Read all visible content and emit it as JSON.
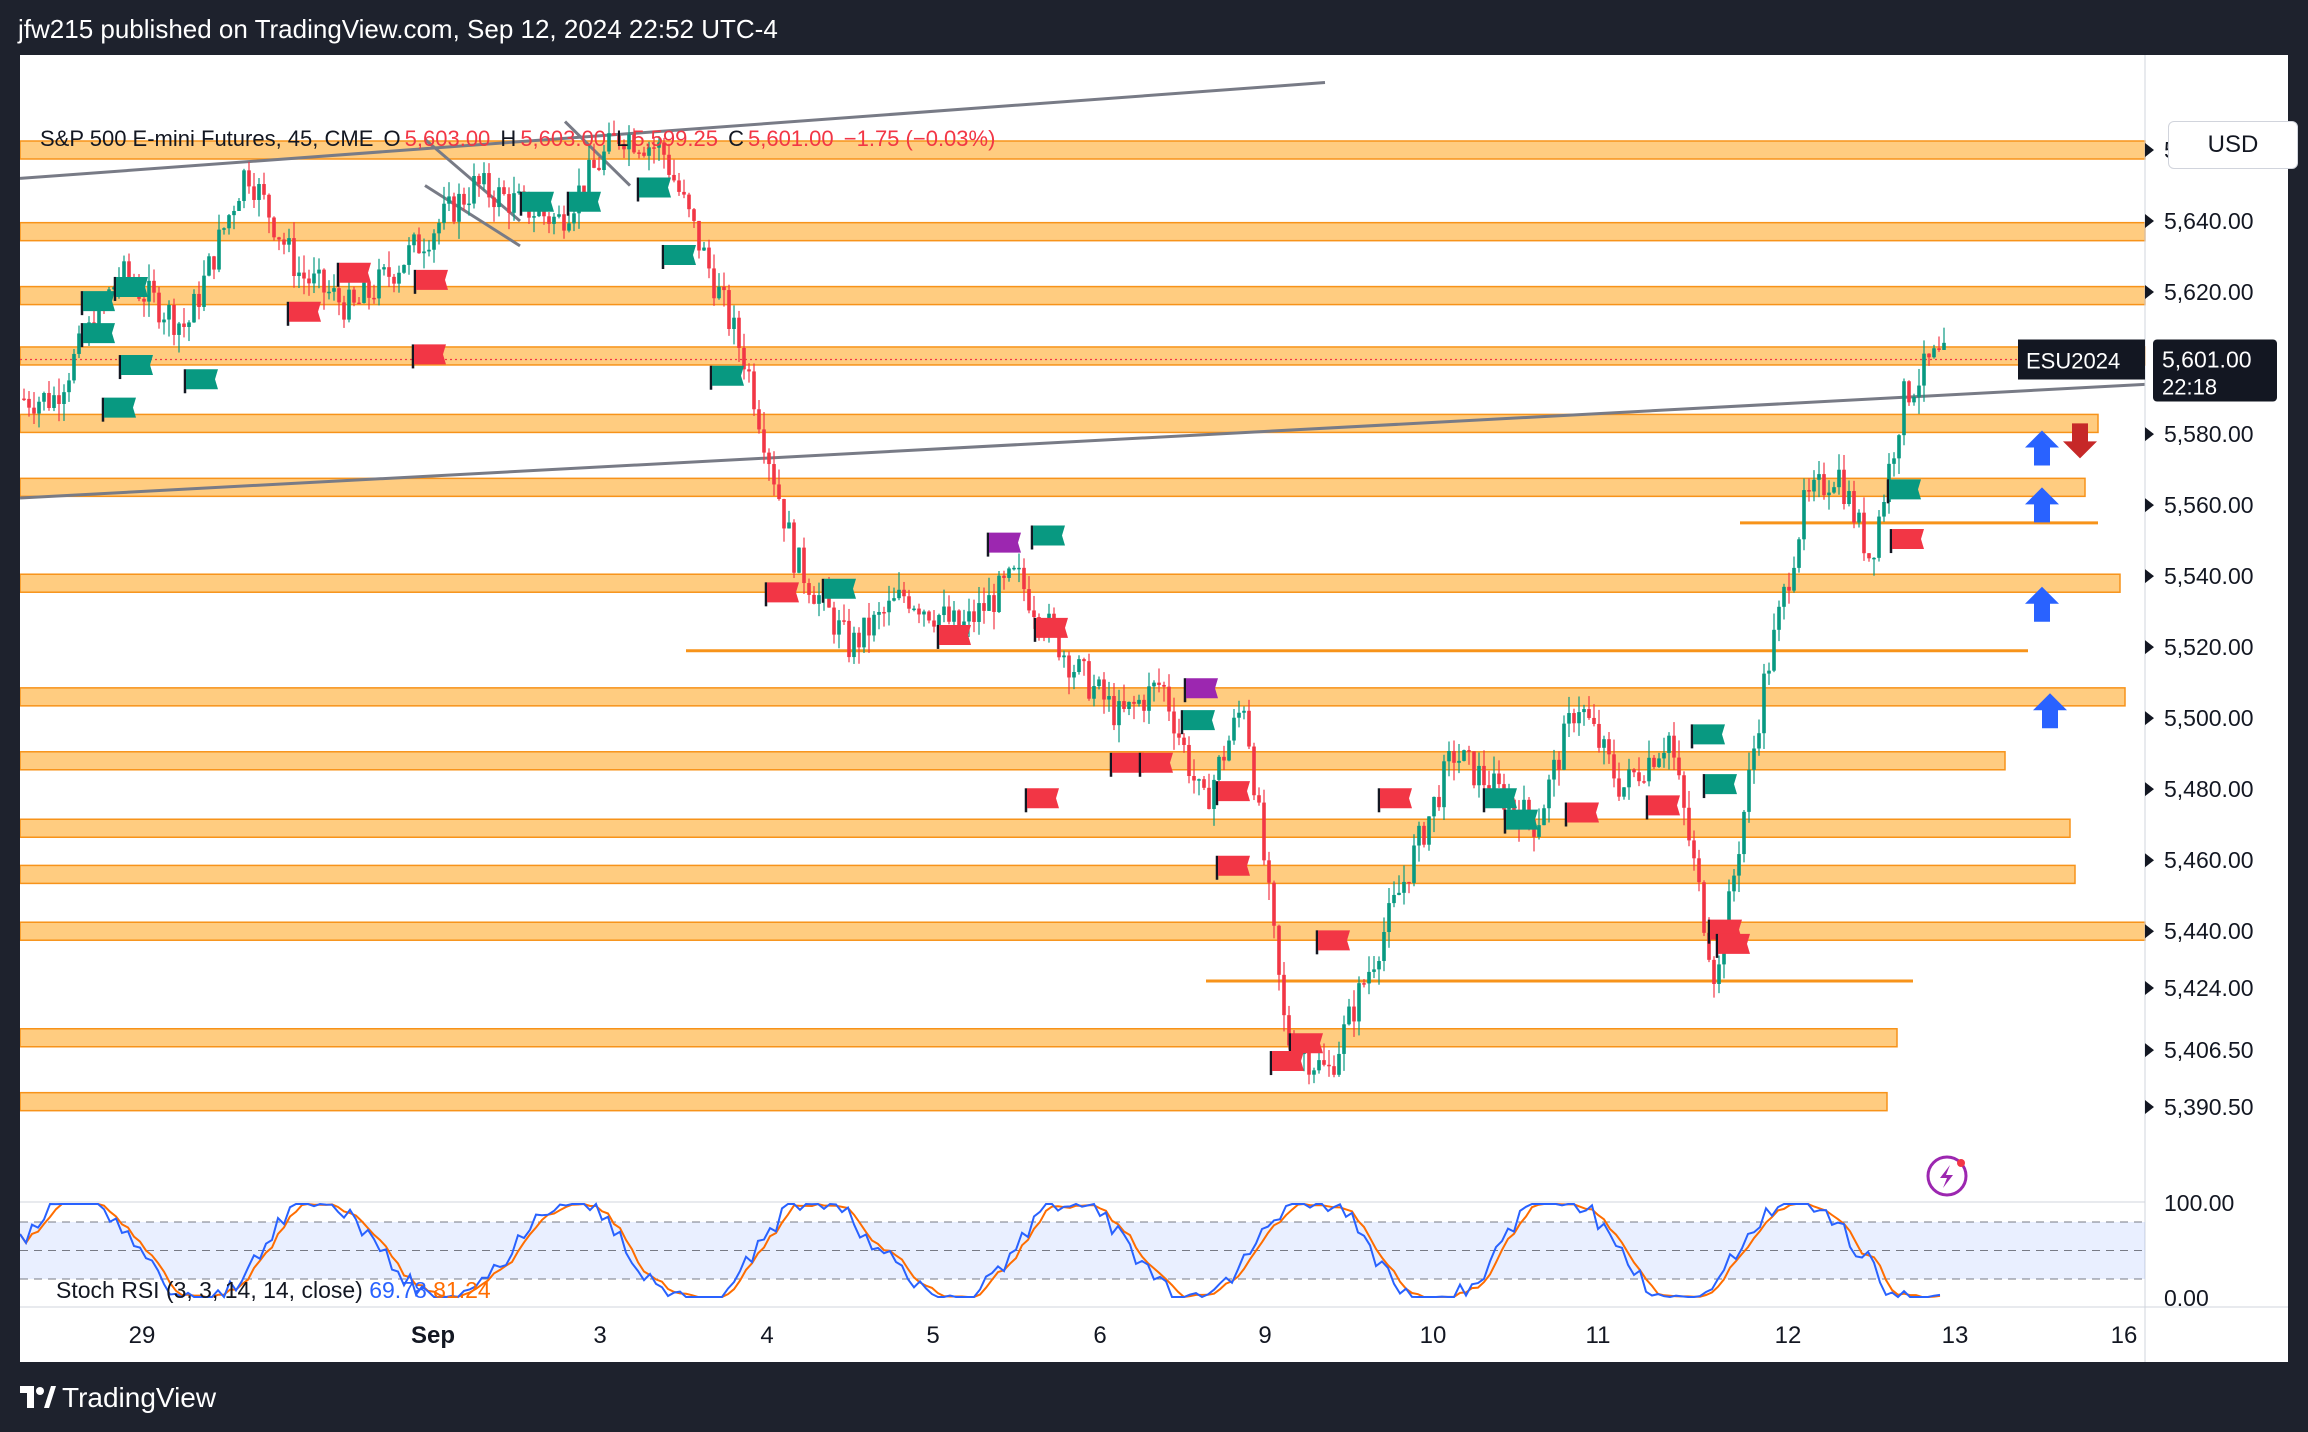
{
  "header": {
    "published": "jfw215 published on TradingView.com, Sep 12, 2024 22:52 UTC-4"
  },
  "legend": {
    "symbol": "S&P 500 E-mini Futures, 45, CME",
    "o_label": "O",
    "o": "5,603.00",
    "h_label": "H",
    "h": "5,603.00",
    "l_label": "L",
    "l": "5,599.25",
    "c_label": "C",
    "c": "5,601.00",
    "change": "−1.75 (−0.03%)"
  },
  "currency": "USD",
  "price_tag": {
    "ticker": "ESU2024",
    "price": "5,601.00",
    "countdown": "22:18"
  },
  "footer": {
    "brand": "TradingView"
  },
  "rsi": {
    "label": "Stoch RSI (3, 3, 14, 14, close)",
    "k": "69.78",
    "d": "81.24",
    "upper": "100.00",
    "lower": "0.00"
  },
  "colors": {
    "up": "#089981",
    "down": "#f23645",
    "zone_fill": "#ffcc80",
    "zone_edge": "#f7931a",
    "trendline": "#787b86",
    "flag_buy": "#089981",
    "flag_sell": "#f23645",
    "flag_purple": "#9c27b0",
    "arrow_up": "#2962ff",
    "arrow_down": "#c62828"
  },
  "chart_data": {
    "type": "candlestick",
    "interval": "45",
    "y_ticks": [
      "5,660.00",
      "5,640.00",
      "5,620.00",
      "5,580.00",
      "5,560.00",
      "5,540.00",
      "5,520.00",
      "5,500.00",
      "5,480.00",
      "5,460.00",
      "5,440.00",
      "5,424.00",
      "5,406.50",
      "5,390.50"
    ],
    "x_ticks": [
      "29",
      "Sep",
      "3",
      "4",
      "5",
      "6",
      "9",
      "10",
      "11",
      "12",
      "13",
      "16"
    ],
    "close_path": [
      [
        "29",
        5590
      ],
      [
        "29",
        5625
      ],
      [
        "29",
        5610
      ],
      [
        "30",
        5655
      ],
      [
        "30",
        5625
      ],
      [
        "30",
        5615
      ],
      [
        "30",
        5630
      ],
      [
        "Sep",
        5650
      ],
      [
        "Sep",
        5640
      ],
      [
        "3",
        5665
      ],
      [
        "3",
        5660
      ],
      [
        "3",
        5630
      ],
      [
        "3",
        5600
      ],
      [
        "4",
        5545
      ],
      [
        "4",
        5520
      ],
      [
        "4",
        5535
      ],
      [
        "5",
        5525
      ],
      [
        "5",
        5540
      ],
      [
        "5",
        5515
      ],
      [
        "6",
        5500
      ],
      [
        "6",
        5510
      ],
      [
        "6",
        5475
      ],
      [
        "6",
        5505
      ],
      [
        "9",
        5410
      ],
      [
        "9",
        5400
      ],
      [
        "9",
        5430
      ],
      [
        "9",
        5460
      ],
      [
        "10",
        5490
      ],
      [
        "10",
        5480
      ],
      [
        "10",
        5470
      ],
      [
        "10",
        5505
      ],
      [
        "11",
        5480
      ],
      [
        "11",
        5495
      ],
      [
        "11",
        5425
      ],
      [
        "11",
        5510
      ],
      [
        "12",
        5560
      ],
      [
        "12",
        5570
      ],
      [
        "12",
        5545
      ],
      [
        "12",
        5590
      ],
      [
        "13",
        5601
      ]
    ],
    "series": [],
    "zones": [
      5660,
      5637,
      5619,
      5602,
      5583,
      5565,
      5538,
      5506,
      5488,
      5469,
      5456,
      5440,
      5410,
      5392
    ],
    "thin_lines": [
      5519,
      5555,
      5426
    ],
    "stoch_rsi": {
      "k": 69.78,
      "d": 81.24,
      "bands": [
        80,
        50,
        20
      ]
    },
    "grid": false,
    "legend": "top-left"
  }
}
